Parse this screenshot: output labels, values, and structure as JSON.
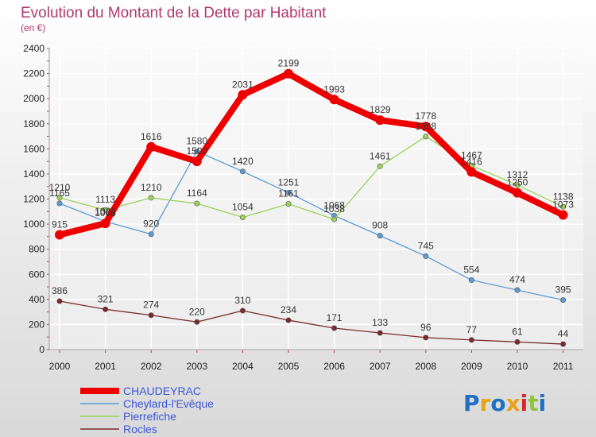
{
  "chart_data": {
    "type": "line",
    "title": "Evolution du Montant de la Dette par Habitant",
    "subtitle": "(en €)",
    "x": [
      "2000",
      "2001",
      "2002",
      "2003",
      "2004",
      "2005",
      "2006",
      "2007",
      "2008",
      "2009",
      "2010",
      "2011"
    ],
    "ylim": [
      0,
      2400
    ],
    "yticks": [
      0,
      200,
      400,
      600,
      800,
      1000,
      1200,
      1400,
      1600,
      1800,
      2000,
      2200,
      2400
    ],
    "grid": true,
    "legend_position": "bottom-left",
    "series": [
      {
        "name": "CHAUDEYRAC",
        "color": "#ee0000",
        "values": [
          915,
          1006,
          1616,
          1500,
          2031,
          2199,
          1993,
          1829,
          1778,
          1416,
          1250,
          1073
        ]
      },
      {
        "name": "Cheylard-l'Evêque",
        "color": "#5b9bd5",
        "values": [
          1165,
          1021,
          920,
          1580,
          1420,
          1251,
          1068,
          908,
          745,
          554,
          474,
          395
        ]
      },
      {
        "name": "Pierrefiche",
        "color": "#9ad25a",
        "values": [
          1210,
          1113,
          1210,
          1164,
          1054,
          1161,
          1038,
          1461,
          1698,
          1467,
          1312,
          1138
        ]
      },
      {
        "name": "Rocles",
        "color": "#7a2a2a",
        "values": [
          386,
          321,
          274,
          220,
          310,
          234,
          171,
          133,
          96,
          77,
          61,
          44
        ]
      }
    ],
    "data_labels": {
      "CHAUDEYRAC": [
        "915",
        "1006",
        "1616",
        "1500",
        "2031",
        "2199",
        "1993",
        "1829",
        "1778",
        "1416",
        "1250",
        "1073"
      ],
      "Cheylard-l'Evêque": [
        "1165",
        "1021",
        "920",
        "1580",
        "1420",
        "1251",
        "1068",
        "908",
        "745",
        "554",
        "474",
        "395"
      ],
      "Pierrefiche": [
        "1210",
        "1113",
        "1210",
        "1164",
        "1054",
        "1161",
        "1038",
        "1461",
        "1698",
        "1467",
        "1312",
        "1138"
      ],
      "Rocles": [
        "386",
        "321",
        "274",
        "220",
        "310",
        "234",
        "171",
        "133",
        "96",
        "77",
        "61",
        "44"
      ]
    }
  },
  "brand": {
    "logo_text": "Proxiti",
    "logo_colors": [
      "#1f6fc5",
      "#e8a317",
      "#1f6fc5",
      "#e8a317",
      "#d42a2a",
      "#8ec641",
      "#1f6fc5"
    ]
  }
}
